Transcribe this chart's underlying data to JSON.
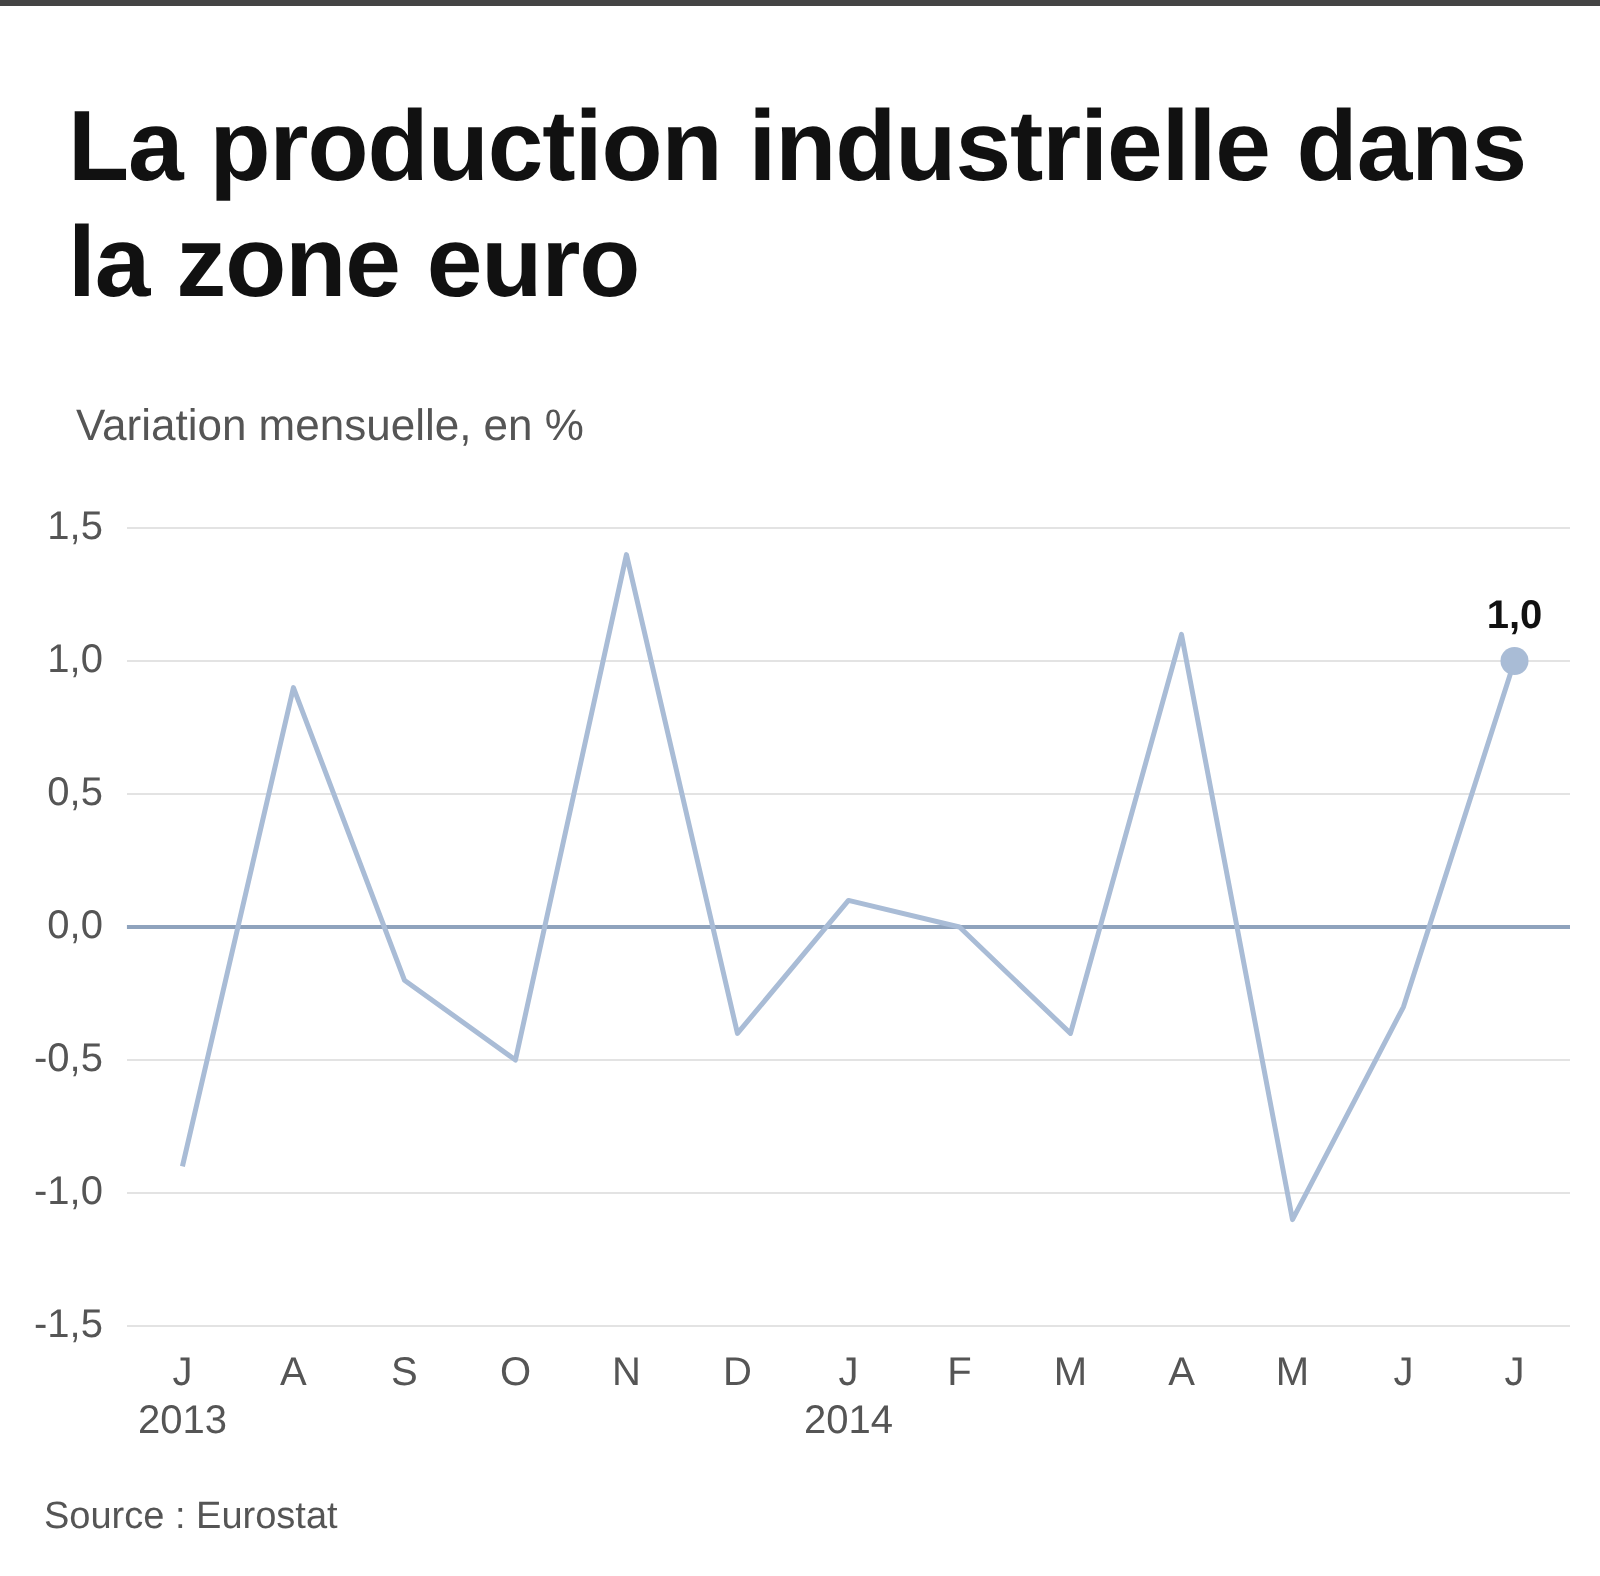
{
  "chart_data": {
    "type": "line",
    "title": "La production industrielle dans la zone euro",
    "subtitle": "Variation mensuelle, en %",
    "categories": [
      "J\n2013",
      "A",
      "S",
      "O",
      "N",
      "D",
      "J\n2014",
      "F",
      "M",
      "A",
      "M",
      "J",
      "J"
    ],
    "series": [
      {
        "color": "#a9bcd6",
        "values": [
          -0.9,
          0.9,
          -0.2,
          -0.5,
          1.4,
          -0.4,
          0.1,
          0.0,
          -0.4,
          1.1,
          -1.1,
          -0.3,
          1.0
        ],
        "value_labels": [
          null,
          null,
          null,
          null,
          null,
          null,
          null,
          null,
          null,
          null,
          null,
          null,
          "1,0"
        ]
      }
    ],
    "ylim": [
      -1.5,
      1.5
    ],
    "yticks": [
      {
        "value": -1.5,
        "label": "-1,5"
      },
      {
        "value": -1.0,
        "label": "-1,0"
      },
      {
        "value": -0.5,
        "label": "-0,5"
      },
      {
        "value": 0,
        "label": "0,0"
      },
      {
        "value": 0.5,
        "label": "0,5"
      },
      {
        "value": 1.0,
        "label": "1,0"
      },
      {
        "value": 1.5,
        "label": "1,5"
      }
    ],
    "grid": "y",
    "ref_lines": [
      {
        "axis": "y",
        "value": 0,
        "color": "#8fa3bd"
      }
    ],
    "annotations": [
      "Source : Eurostat"
    ]
  }
}
